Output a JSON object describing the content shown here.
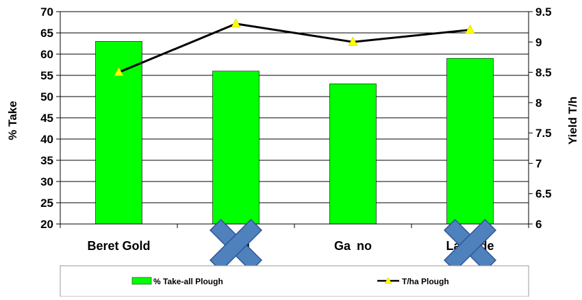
{
  "chart_data": {
    "type": "bar",
    "categories": [
      "Beret Gold",
      "Tx d",
      "Ga no",
      "Latitude"
    ],
    "series": [
      {
        "name": "% Take-all Plough",
        "type": "bar",
        "axis": "left",
        "values": [
          63,
          56,
          53,
          59
        ],
        "color": "#00ff00"
      },
      {
        "name": "T/ha Plough",
        "type": "line",
        "axis": "right",
        "values": [
          8.5,
          9.3,
          9.0,
          9.2
        ],
        "color": "#000000",
        "marker_color": "#ffff00"
      }
    ],
    "ylabel": "% Take",
    "y2label": "Yield T/h",
    "ylim": [
      20,
      70
    ],
    "y2lim": [
      6,
      9.5
    ],
    "yticks": [
      "20",
      "25",
      "30",
      "35",
      "40",
      "45",
      "50",
      "55",
      "60",
      "65",
      "70"
    ],
    "y2ticks": [
      "6",
      "6.5",
      "7",
      "7.5",
      "8",
      "8.5",
      "9",
      "9.5"
    ],
    "grid": true,
    "legend_position": "bottom",
    "overlay": {
      "icon": "x-cross-icon",
      "on_categories": [
        1,
        3
      ],
      "color": "#4f81bd"
    }
  }
}
